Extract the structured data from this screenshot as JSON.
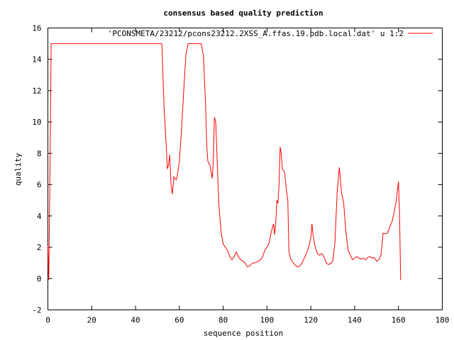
{
  "chart_data": {
    "type": "line",
    "title": "consensus based quality prediction",
    "xlabel": "sequence position",
    "ylabel": "quality",
    "xlim": [
      0,
      180
    ],
    "ylim": [
      -2,
      16
    ],
    "xticks": [
      0,
      20,
      40,
      60,
      80,
      100,
      120,
      140,
      160,
      180
    ],
    "yticks": [
      -2,
      0,
      2,
      4,
      6,
      8,
      10,
      12,
      14,
      16
    ],
    "grid": false,
    "legend_position": "top-right",
    "series": [
      {
        "name": "'PCONSMETA/23212/pcons23212.2XSS_A.ffas.19.pdb.local.dat' u 1:2",
        "color": "#ff0000",
        "points": [
          [
            0,
            2.1
          ],
          [
            0.4,
            -0.1
          ],
          [
            1,
            7.5
          ],
          [
            1.5,
            15
          ],
          [
            52,
            15
          ],
          [
            53,
            11.0
          ],
          [
            54,
            8.5
          ],
          [
            54.5,
            7.0
          ],
          [
            55,
            7.2
          ],
          [
            55.6,
            7.9
          ],
          [
            56.2,
            6.0
          ],
          [
            56.8,
            5.4
          ],
          [
            57.5,
            6.5
          ],
          [
            58.5,
            6.3
          ],
          [
            59,
            6.5
          ],
          [
            60,
            7.5
          ],
          [
            61,
            9.5
          ],
          [
            62,
            12.0
          ],
          [
            63,
            14.3
          ],
          [
            64,
            15
          ],
          [
            70,
            15
          ],
          [
            71,
            14.2
          ],
          [
            72,
            11.0
          ],
          [
            72.5,
            8.5
          ],
          [
            73,
            7.5
          ],
          [
            74,
            7.2
          ],
          [
            74.5,
            6.8
          ],
          [
            75,
            6.4
          ],
          [
            75.5,
            7.5
          ],
          [
            76,
            10.3
          ],
          [
            76.6,
            10.0
          ],
          [
            77,
            8.5
          ],
          [
            78,
            4.8
          ],
          [
            79,
            3.0
          ],
          [
            80,
            2.2
          ],
          [
            81,
            2.0
          ],
          [
            82,
            1.8
          ],
          [
            83,
            1.4
          ],
          [
            84,
            1.2
          ],
          [
            85,
            1.4
          ],
          [
            86,
            1.7
          ],
          [
            87,
            1.4
          ],
          [
            88,
            1.2
          ],
          [
            89,
            1.1
          ],
          [
            90,
            1.0
          ],
          [
            91,
            0.75
          ],
          [
            92,
            0.8
          ],
          [
            93,
            0.95
          ],
          [
            94,
            1.0
          ],
          [
            95,
            1.05
          ],
          [
            96,
            1.1
          ],
          [
            97,
            1.2
          ],
          [
            98,
            1.4
          ],
          [
            99,
            1.8
          ],
          [
            100,
            2.0
          ],
          [
            101,
            2.3
          ],
          [
            102,
            3.0
          ],
          [
            103,
            3.5
          ],
          [
            103.5,
            2.8
          ],
          [
            104,
            3.6
          ],
          [
            104.5,
            5.0
          ],
          [
            105,
            4.8
          ],
          [
            105.5,
            6.0
          ],
          [
            106,
            8.4
          ],
          [
            106.5,
            8.0
          ],
          [
            107,
            7.0
          ],
          [
            108,
            6.8
          ],
          [
            109,
            5.5
          ],
          [
            109.5,
            5.0
          ],
          [
            110,
            1.7
          ],
          [
            111,
            1.2
          ],
          [
            112,
            1.0
          ],
          [
            113,
            0.85
          ],
          [
            114,
            0.75
          ],
          [
            115,
            0.8
          ],
          [
            116,
            1.0
          ],
          [
            117,
            1.3
          ],
          [
            118,
            1.6
          ],
          [
            119,
            2.0
          ],
          [
            120,
            2.6
          ],
          [
            120.5,
            3.5
          ],
          [
            121,
            2.8
          ],
          [
            122,
            2.0
          ],
          [
            123,
            1.6
          ],
          [
            124,
            1.5
          ],
          [
            125,
            1.6
          ],
          [
            126,
            1.4
          ],
          [
            127,
            1.0
          ],
          [
            128,
            0.9
          ],
          [
            129,
            0.95
          ],
          [
            130,
            1.1
          ],
          [
            131,
            2.3
          ],
          [
            132,
            5.5
          ],
          [
            133,
            7.1
          ],
          [
            134,
            5.5
          ],
          [
            135,
            4.8
          ],
          [
            136,
            3.0
          ],
          [
            137,
            1.8
          ],
          [
            138,
            1.5
          ],
          [
            139,
            1.2
          ],
          [
            140,
            1.3
          ],
          [
            141,
            1.4
          ],
          [
            142,
            1.3
          ],
          [
            143,
            1.25
          ],
          [
            144,
            1.3
          ],
          [
            145,
            1.2
          ],
          [
            146,
            1.35
          ],
          [
            147,
            1.4
          ],
          [
            148,
            1.3
          ],
          [
            149,
            1.35
          ],
          [
            150,
            1.1
          ],
          [
            151,
            1.2
          ],
          [
            152,
            1.5
          ],
          [
            153,
            2.9
          ],
          [
            154,
            2.85
          ],
          [
            155,
            2.9
          ],
          [
            156,
            3.3
          ],
          [
            157,
            3.6
          ],
          [
            158,
            4.2
          ],
          [
            159,
            5.0
          ],
          [
            160,
            6.2
          ],
          [
            160.5,
            4.0
          ],
          [
            161,
            -0.1
          ]
        ]
      }
    ]
  }
}
